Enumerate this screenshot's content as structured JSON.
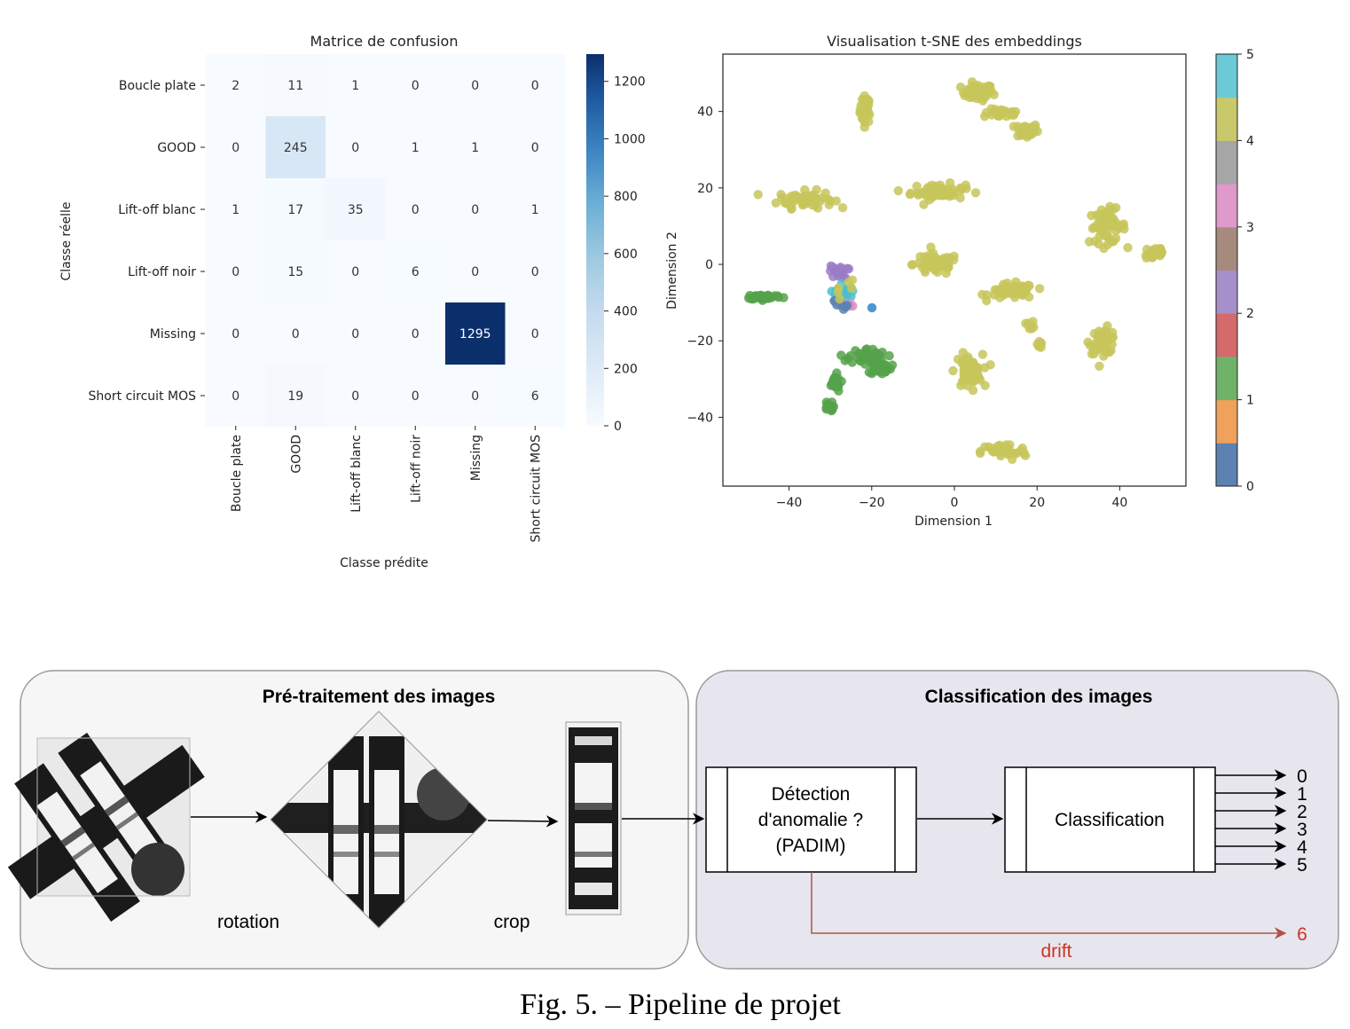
{
  "colors": {
    "panel_left_bg": "#f6f6f6",
    "panel_right_bg": "#e7e6ee",
    "panel_border": "#9a9a9a",
    "drift_red": "#b22222",
    "heatmap_dark": "#0b2f6b",
    "heatmap_light": "#f6f9fd"
  },
  "chart_data": [
    {
      "type": "heatmap",
      "title": "Matrice de confusion",
      "xlabel": "Classe prédite",
      "ylabel": "Classe réelle",
      "row_labels": [
        "Boucle plate",
        "GOOD",
        "Lift-off blanc",
        "Lift-off noir",
        "Missing",
        "Short circuit MOS"
      ],
      "col_labels": [
        "Boucle plate",
        "GOOD",
        "Lift-off blanc",
        "Lift-off noir",
        "Missing",
        "Short circuit MOS"
      ],
      "values": [
        [
          2,
          11,
          1,
          0,
          0,
          0
        ],
        [
          0,
          245,
          0,
          1,
          1,
          0
        ],
        [
          1,
          17,
          35,
          0,
          0,
          1
        ],
        [
          0,
          15,
          0,
          6,
          0,
          0
        ],
        [
          0,
          0,
          0,
          0,
          1295,
          0
        ],
        [
          0,
          19,
          0,
          0,
          0,
          6
        ]
      ],
      "colorbar": {
        "ticks": [
          0,
          200,
          400,
          600,
          800,
          1000,
          1200
        ],
        "min": 0,
        "max": 1295,
        "colormap": "Blues"
      }
    },
    {
      "type": "scatter",
      "title": "Visualisation t-SNE des embeddings",
      "xlabel": "Dimension 1",
      "ylabel": "Dimension 2",
      "xlim": [
        -56,
        56
      ],
      "ylim": [
        -58,
        55
      ],
      "xticks": [
        -40,
        -20,
        0,
        20,
        40
      ],
      "yticks": [
        -40,
        -20,
        0,
        20,
        40
      ],
      "xtick_labels": [
        "−40",
        "−20",
        "0",
        "20",
        "40"
      ],
      "ytick_labels": [
        "−40",
        "−20",
        "0",
        "20",
        "40"
      ],
      "colorbar": {
        "ticks": [
          0,
          1,
          2,
          3,
          4,
          5
        ],
        "colormap": "tab10 (6 bins)"
      },
      "class_colors": {
        "0": "#5b82b2",
        "1": "#55a24a",
        "2": "#9a7cc5",
        "3": "#df8fc7",
        "4": "#c7c55a",
        "5": "#49c0ce",
        "5b": "#2a86c9"
      },
      "clusters": [
        {
          "class": 4,
          "cx": -21.5,
          "cy": 40.5,
          "sx": 1.2,
          "sy": 3.2,
          "n": 40
        },
        {
          "class": 4,
          "cx": 5.5,
          "cy": 45,
          "sx": 3.5,
          "sy": 2.0,
          "n": 40
        },
        {
          "class": 4,
          "cx": 11.5,
          "cy": 39.5,
          "sx": 4.0,
          "sy": 1.0,
          "n": 30
        },
        {
          "class": 4,
          "cx": 17.5,
          "cy": 35,
          "sx": 2.5,
          "sy": 1.8,
          "n": 40
        },
        {
          "class": 4,
          "cx": -36,
          "cy": 17,
          "sx": 6.0,
          "sy": 2.0,
          "n": 60
        },
        {
          "class": 4,
          "cx": -4,
          "cy": 19,
          "sx": 6.0,
          "sy": 1.8,
          "n": 60
        },
        {
          "class": 4,
          "cx": 37,
          "cy": 10,
          "sx": 4.0,
          "sy": 4.0,
          "n": 60
        },
        {
          "class": 4,
          "cx": 48.5,
          "cy": 3,
          "sx": 2.5,
          "sy": 2.0,
          "n": 25
        },
        {
          "class": 4,
          "cx": -4.5,
          "cy": 0,
          "sx": 5.0,
          "sy": 2.5,
          "n": 55
        },
        {
          "class": 4,
          "cx": 14,
          "cy": -7,
          "sx": 5.0,
          "sy": 1.8,
          "n": 55
        },
        {
          "class": 4,
          "cx": 18.5,
          "cy": -16,
          "sx": 0.8,
          "sy": 1.0,
          "n": 8
        },
        {
          "class": 4,
          "cx": 20.5,
          "cy": -20.5,
          "sx": 0.8,
          "sy": 1.2,
          "n": 8
        },
        {
          "class": 4,
          "cx": 36,
          "cy": -20,
          "sx": 3.0,
          "sy": 3.0,
          "n": 45
        },
        {
          "class": 4,
          "cx": 3.5,
          "cy": -28,
          "sx": 3.0,
          "sy": 4.0,
          "n": 55
        },
        {
          "class": 4,
          "cx": 12,
          "cy": -49,
          "sx": 5.0,
          "sy": 2.0,
          "n": 45
        },
        {
          "class": 1,
          "cx": -46,
          "cy": -8.5,
          "sx": 4.0,
          "sy": 0.6,
          "n": 45
        },
        {
          "class": 1,
          "cx": -21,
          "cy": -24,
          "sx": 4.0,
          "sy": 1.8,
          "n": 40
        },
        {
          "class": 1,
          "cx": -18,
          "cy": -27,
          "sx": 2.5,
          "sy": 1.5,
          "n": 30
        },
        {
          "class": 1,
          "cx": -29,
          "cy": -31,
          "sx": 1.5,
          "sy": 2.0,
          "n": 20
        },
        {
          "class": 1,
          "cx": -30.5,
          "cy": -37.5,
          "sx": 1.0,
          "sy": 1.5,
          "n": 15
        },
        {
          "class": 2,
          "cx": -28,
          "cy": -2,
          "sx": 2.0,
          "sy": 1.5,
          "n": 22
        },
        {
          "class": 5,
          "cx": -27,
          "cy": -7,
          "sx": 2.5,
          "sy": 2.0,
          "n": 16
        },
        {
          "class": 3,
          "cx": -26,
          "cy": -11,
          "sx": 2.0,
          "sy": 1.0,
          "n": 5
        },
        {
          "class": 0,
          "cx": -27.5,
          "cy": -10,
          "sx": 1.5,
          "sy": 2.0,
          "n": 8
        },
        {
          "class": 4,
          "cx": -27,
          "cy": -6,
          "sx": 3.0,
          "sy": 2.5,
          "n": 6
        },
        {
          "class": "5b",
          "cx": -20,
          "cy": -11.5,
          "sx": 0.3,
          "sy": 0.3,
          "n": 1
        }
      ]
    }
  ],
  "pipeline": {
    "left_title": "Pré-traitement des images",
    "right_title": "Classification des images",
    "rotation_label": "rotation",
    "crop_label": "crop",
    "detection_lines": [
      "Détection",
      "d'anomalie ?",
      "(PADIM)"
    ],
    "classification_label": "Classification",
    "outputs": [
      "0",
      "1",
      "2",
      "3",
      "4",
      "5"
    ],
    "drift_label": "drift",
    "drift_output": "6"
  },
  "caption": "Fig. 5. – Pipeline de projet"
}
